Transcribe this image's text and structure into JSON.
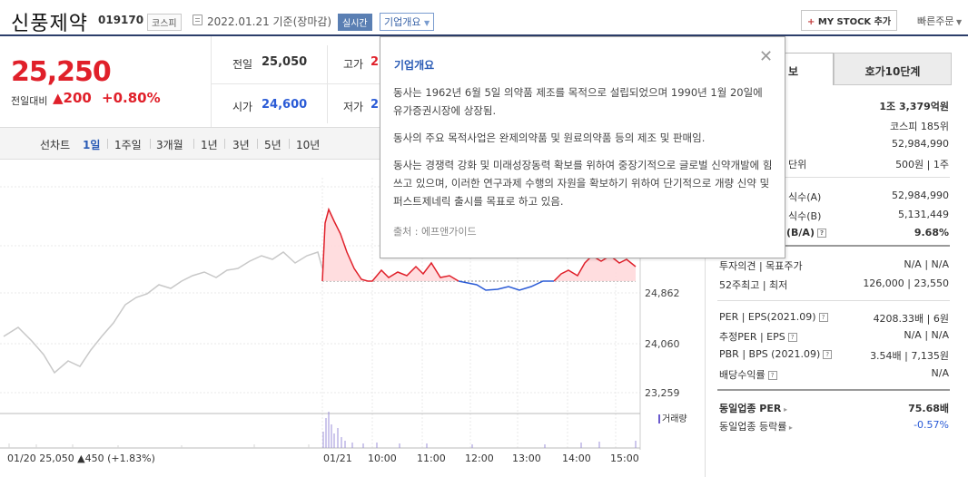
{
  "header": {
    "company_name": "신풍제약",
    "stock_code": "019170",
    "market": "코스피",
    "base_date": "2022.01.21  기준(장마감)",
    "realtime": "실시간",
    "company_info": "기업개요",
    "mystock": "MY STOCK 추가",
    "quick_order": "빠른주문"
  },
  "price": {
    "current": "25,250",
    "change_label": "전일대비",
    "change_amount": "▲200",
    "change_percent": "+0.80%"
  },
  "quotes": {
    "prev_label": "전일",
    "prev_value": "25,050",
    "high_label": "고가",
    "high_value": "2",
    "open_label": "시가",
    "open_value": "24,600",
    "low_label": "저가",
    "low_value": "2"
  },
  "periods": {
    "label": "선차트",
    "items": [
      "1일",
      "1주일",
      "3개월",
      "1년",
      "3년",
      "5년",
      "10년"
    ]
  },
  "chart": {
    "y_ticks": [
      "24,862",
      "24,060",
      "23,259"
    ],
    "x_ticks": [
      "01/21",
      "10:00",
      "11:00",
      "12:00",
      "13:00",
      "14:00",
      "15:00"
    ],
    "prev_day_summary": "01/20  25,050 ▲450 (+1.83%)",
    "volume_label": "거래량"
  },
  "right": {
    "tab_basic": "보",
    "tab_hoga": "호가10단계",
    "rows": [
      {
        "label": "",
        "value": "1조 3,379억원",
        "bold": true
      },
      {
        "label": "",
        "value": "코스피 185위"
      },
      {
        "label": "",
        "value": "52,984,990"
      },
      {
        "label": "단위",
        "value": "500원 | 1주"
      },
      {
        "label": "식수(A)",
        "value": "52,984,990"
      },
      {
        "label": "식수(B)",
        "value": "5,131,449"
      },
      {
        "label": "(B/A)",
        "value": "9.68%",
        "bold": true
      },
      {
        "label": "투자의견 | 목표주가",
        "value": "N/A | N/A"
      },
      {
        "label": "52주최고 | 최저",
        "value": "126,000 | 23,550"
      },
      {
        "label": "PER | EPS(2021.09)",
        "value": "4208.33배 | 6원"
      },
      {
        "label": "추정PER | EPS",
        "value": "N/A | N/A"
      },
      {
        "label": "PBR | BPS (2021.09)",
        "value": "3.54배 | 7,135원"
      },
      {
        "label": "배당수익률",
        "value": "N/A"
      },
      {
        "label": "동일업종 PER",
        "value": "75.68배",
        "bold": true
      },
      {
        "label": "동일업종 등락률",
        "value": "-0.57%",
        "blue": true
      }
    ]
  },
  "popup": {
    "title": "기업개요",
    "p1": "동사는 1962년 6월 5일 의약품 제조를 목적으로 설립되었으며 1990년 1월 20일에 유가증권시장에 상장됨.",
    "p2": "동사의 주요 목적사업은 완제의약품 및 원료의약품 등의 제조 및 판매임.",
    "p3": "동사는 경쟁력 강화 및 미래성장동력 확보를 위하여 중장기적으로 글로벌 신약개발에 힘쓰고 있으며, 이러한 연구과제 수행의 자원을 확보하기 위하여 단기적으로 개량 신약 및 퍼스트제네릭 출시를 목표로 하고 있음.",
    "source": "출처 : 에프앤가이드"
  },
  "colors": {
    "up": "#e0202a",
    "down": "#2a5bd6",
    "accent": "#2a5bb5"
  }
}
